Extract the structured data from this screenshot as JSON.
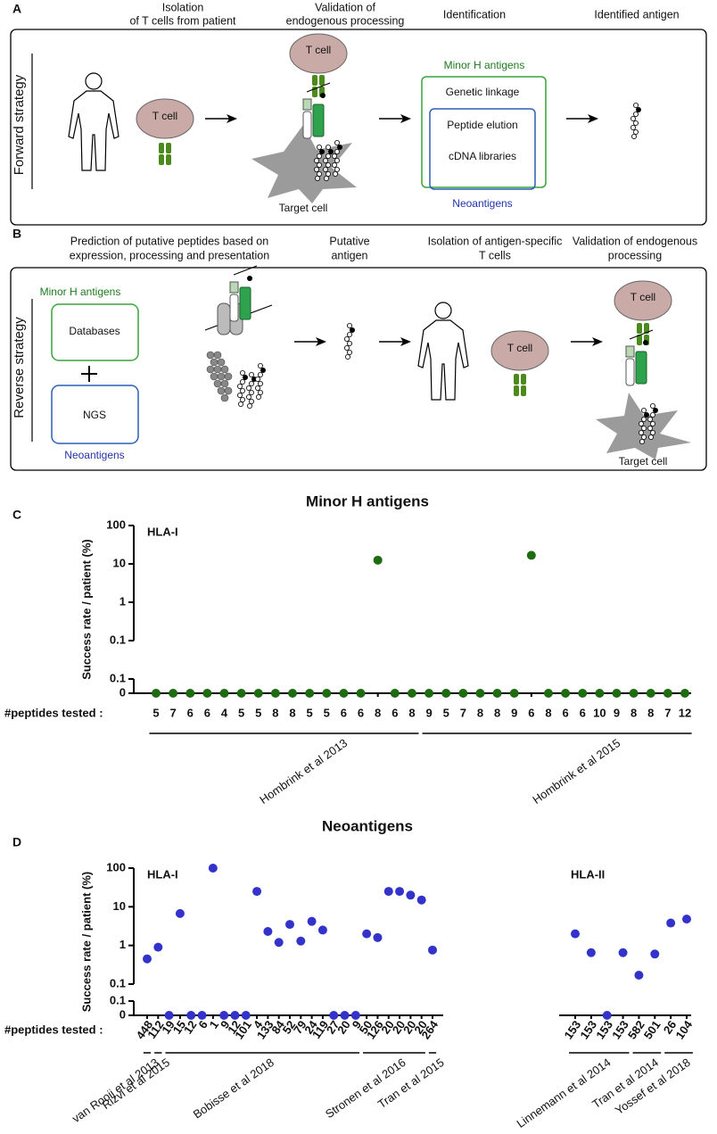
{
  "panel_a": {
    "letter": "A",
    "side_label": "Forward strategy",
    "steps": [
      [
        "Isolation",
        "of T cells from patient"
      ],
      [
        "Validation of",
        "endogenous processing"
      ],
      [
        "Identification"
      ],
      [
        "Identified antigen"
      ]
    ],
    "t_cell": "T cell",
    "target_cell": "Target cell",
    "minor_h": "Minor H antigens",
    "methods": [
      "Genetic linkage",
      "Peptide elution",
      "cDNA libraries"
    ],
    "neoantigens": "Neoantigens"
  },
  "panel_b": {
    "letter": "B",
    "side_label": "Reverse strategy",
    "steps": [
      [
        "Prediction of putative peptides based on",
        "expression, processing and presentation"
      ],
      [
        "Putative",
        "antigen"
      ],
      [
        "Isolation of antigen-specific",
        "T cells"
      ],
      [
        "Validation of endogenous",
        "processing"
      ]
    ],
    "minor_h": "Minor H antigens",
    "databases": "Databases",
    "ngs": "NGS",
    "neoantigens": "Neoantigens",
    "t_cell": "T cell",
    "target_cell": "Target cell"
  },
  "chart_data": [
    {
      "type": "dot",
      "panel": "C",
      "title": "Minor H antigens",
      "ylabel": "Success rate / patient (%)",
      "xlabel": "#peptides tested :",
      "color": "#1e6b12",
      "log": true,
      "ylim": [
        0.1,
        100
      ],
      "yticks": [
        0.1,
        1,
        10,
        100
      ],
      "zero_ylim": [
        0,
        0.1
      ],
      "zero_yticks": [
        0,
        0.1
      ],
      "subpanels": [
        {
          "label": "HLA-I",
          "groups": [
            {
              "name": "Hombrink et al 2013",
              "categories": [
                "5",
                "7",
                "6",
                "6",
                "4",
                "5",
                "5",
                "8",
                "8",
                "5",
                "5",
                "6",
                "6",
                "8",
                "6",
                "8"
              ],
              "values": [
                0,
                0,
                0,
                0,
                0,
                0,
                0,
                0,
                0,
                0,
                0,
                0,
                0,
                12.5,
                0,
                0
              ]
            },
            {
              "name": "Hombrink et al 2015",
              "categories": [
                "9",
                "5",
                "7",
                "8",
                "8",
                "9",
                "6",
                "8",
                "6",
                "6",
                "10",
                "9",
                "8",
                "8",
                "7",
                "12"
              ],
              "values": [
                0,
                0,
                0,
                0,
                0,
                0,
                16.7,
                0,
                0,
                0,
                0,
                0,
                0,
                0,
                0,
                0
              ]
            }
          ]
        }
      ]
    },
    {
      "type": "dot",
      "panel": "D",
      "title": "Neoantigens",
      "ylabel": "Success rate / patient (%)",
      "xlabel": "#peptides tested :",
      "color": "#3333cc",
      "log": true,
      "ylim": [
        0.1,
        100
      ],
      "yticks": [
        0.1,
        1,
        10,
        100
      ],
      "zero_ylim": [
        0,
        0.1
      ],
      "zero_yticks": [
        0,
        0.1
      ],
      "subpanels": [
        {
          "label": "HLA-I",
          "groups": [
            {
              "name": "van Rooij et al 2013",
              "categories": [
                "448"
              ],
              "values": [
                0.45
              ]
            },
            {
              "name": "Rizvi et al 2015",
              "categories": [
                "112"
              ],
              "values": [
                0.9
              ]
            },
            {
              "name": "Bobisse et al 2018",
              "categories": [
                "19",
                "15",
                "12",
                "6",
                "1",
                "9",
                "12",
                "101",
                "4",
                "133",
                "84",
                "52",
                "79",
                "24",
                "119",
                "27",
                "20",
                "9"
              ],
              "values": [
                0,
                6.7,
                0,
                0,
                100,
                0,
                0,
                0,
                25,
                2.3,
                1.2,
                3.5,
                1.3,
                4.2,
                2.5,
                0,
                0,
                0
              ]
            },
            {
              "name": "Stronen et al 2016",
              "categories": [
                "50",
                "126",
                "20",
                "20",
                "20",
                "20"
              ],
              "values": [
                2.0,
                1.6,
                25,
                25,
                20,
                15
              ]
            },
            {
              "name": "Tran et al 2015",
              "categories": [
                "264"
              ],
              "values": [
                0.76
              ]
            }
          ]
        },
        {
          "label": "HLA-II",
          "groups": [
            {
              "name": "Linnemann et al 2014",
              "categories": [
                "153",
                "153",
                "153",
                "153"
              ],
              "values": [
                2.0,
                0.65,
                0,
                0.65
              ]
            },
            {
              "name": "Tran et al 2014",
              "categories": [
                "582",
                "501"
              ],
              "values": [
                0.17,
                0.6
              ]
            },
            {
              "name": "Yossef et al 2018",
              "categories": [
                "26",
                "104"
              ],
              "values": [
                3.8,
                4.8
              ]
            }
          ]
        }
      ]
    }
  ]
}
